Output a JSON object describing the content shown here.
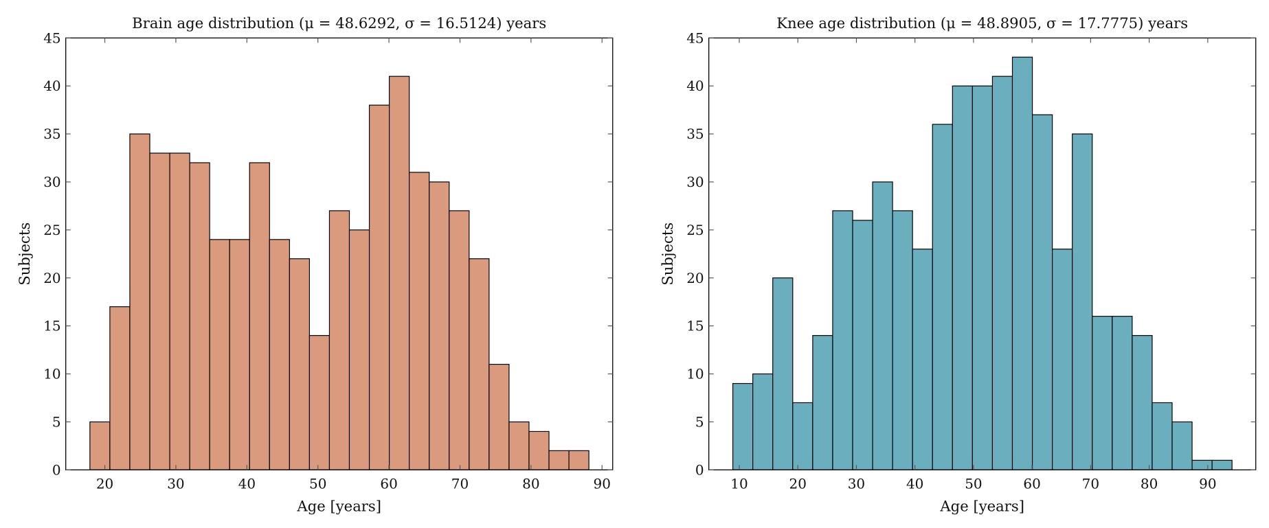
{
  "chart_data": [
    {
      "type": "bar",
      "title": "Brain age distribution (μ = 48.6292, σ = 16.5124) years",
      "xlabel": "Age [years]",
      "ylabel": "Subjects",
      "xlim": [
        14.5,
        91.5
      ],
      "ylim": [
        0,
        45
      ],
      "xticks": [
        20,
        30,
        40,
        50,
        60,
        70,
        80,
        90
      ],
      "yticks": [
        0,
        5,
        10,
        15,
        20,
        25,
        30,
        35,
        40,
        45
      ],
      "bin_start": 17.9,
      "bin_width": 2.81,
      "values": [
        5,
        17,
        35,
        33,
        33,
        32,
        24,
        24,
        32,
        24,
        22,
        14,
        27,
        25,
        38,
        41,
        31,
        30,
        27,
        22,
        11,
        5,
        4,
        2,
        2
      ],
      "color": "#DA9A7E",
      "grid": false
    },
    {
      "type": "bar",
      "title": "Knee age distribution (μ = 48.8905, σ = 17.7775) years",
      "xlabel": "Age [years]",
      "ylabel": "Subjects",
      "xlim": [
        4.8,
        98.2
      ],
      "ylim": [
        0,
        45
      ],
      "xticks": [
        10,
        20,
        30,
        40,
        50,
        60,
        70,
        80,
        90
      ],
      "yticks": [
        0,
        5,
        10,
        15,
        20,
        25,
        30,
        35,
        40,
        45
      ],
      "bin_start": 8.9,
      "bin_width": 3.41,
      "values": [
        9,
        10,
        20,
        7,
        14,
        27,
        26,
        30,
        27,
        23,
        36,
        40,
        40,
        41,
        43,
        37,
        23,
        35,
        16,
        16,
        14,
        7,
        5,
        1,
        1
      ],
      "color": "#6BAEBE",
      "grid": false
    }
  ]
}
